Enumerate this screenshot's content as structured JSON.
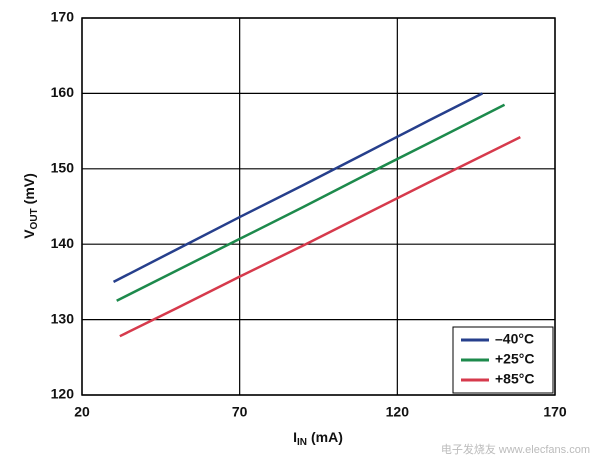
{
  "chart_data": {
    "type": "line",
    "x_label": {
      "main": "I",
      "sub": "IN",
      "unit": "(mA)"
    },
    "y_label": {
      "main": "V",
      "sub": "OUT",
      "unit": "(mV)"
    },
    "xlim": [
      20,
      170
    ],
    "xticks": [
      20,
      70,
      120,
      170
    ],
    "ylim": [
      120,
      170
    ],
    "yticks": [
      120,
      130,
      140,
      150,
      160,
      170
    ],
    "grid": true,
    "legend": "lower right",
    "series": [
      {
        "name": "–40°C",
        "color": "#263f8c",
        "x": [
          30,
          50,
          70,
          90,
          110,
          130,
          147
        ],
        "values": [
          135,
          139.3,
          143.6,
          147.8,
          152.1,
          156.4,
          160
        ]
      },
      {
        "name": "+25°C",
        "color": "#1d8a4c",
        "x": [
          31,
          50,
          70,
          90,
          110,
          130,
          154
        ],
        "values": [
          132.5,
          136.5,
          140.7,
          144.9,
          149.2,
          153.4,
          158.5
        ]
      },
      {
        "name": "+85°C",
        "color": "#d63a4c",
        "x": [
          32,
          50,
          70,
          90,
          110,
          130,
          159
        ],
        "values": [
          127.8,
          131.5,
          135.7,
          139.8,
          144.0,
          148.2,
          154.2
        ]
      }
    ],
    "watermark": "电子发烧友 www.elecfans.com"
  }
}
